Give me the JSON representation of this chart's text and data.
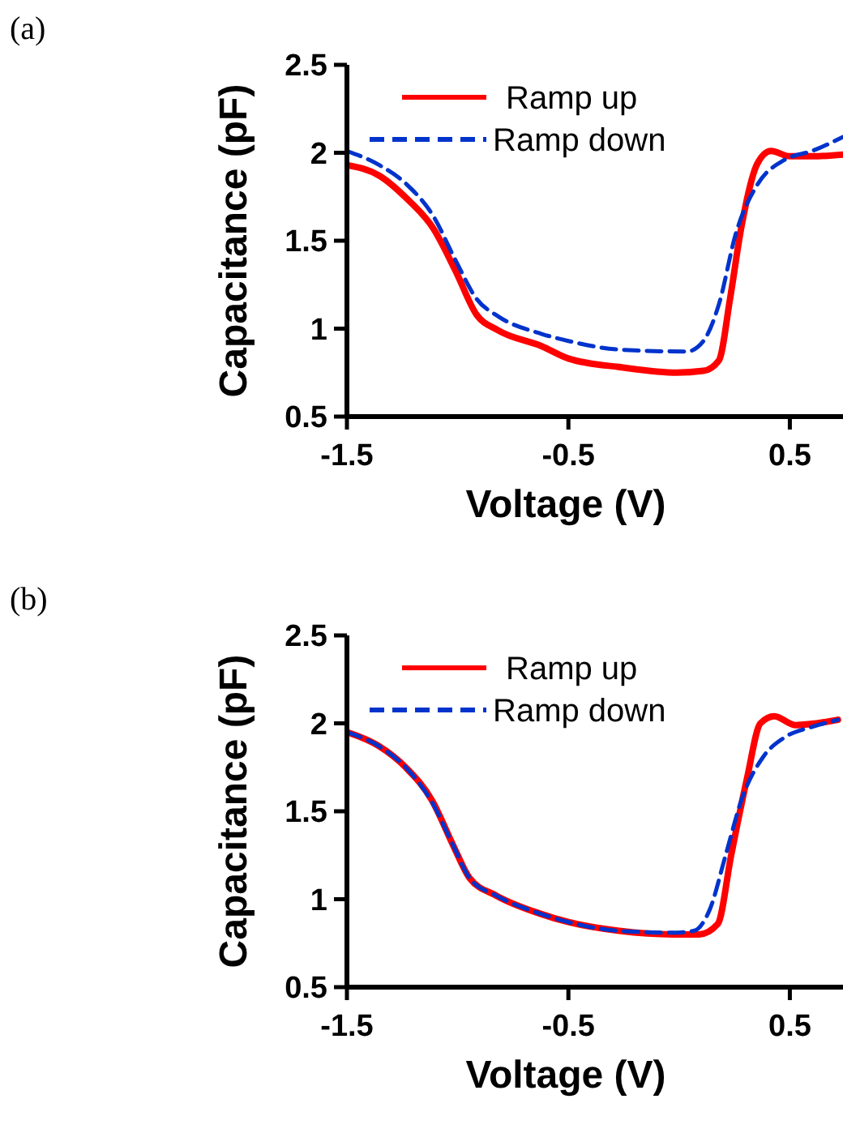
{
  "chart_data": [
    {
      "type": "line",
      "annotations": [
        "(a)"
      ],
      "xlabel": "Voltage (V)",
      "ylabel": "Capacitance (pF)",
      "xlim": [
        -1.5,
        0.74
      ],
      "ylim": [
        0.5,
        2.5
      ],
      "xticks": [
        -1.5,
        -0.5,
        0.5
      ],
      "yticks": [
        0.5,
        1,
        1.5,
        2,
        2.5
      ],
      "grid": false,
      "legend": "top",
      "marker": "none",
      "series": [
        {
          "name": "Ramp up",
          "color": "#ff0000",
          "line_style": "solid",
          "x": [
            -1.5,
            -1.354,
            -1.23,
            -1.11,
            -1.01,
            -0.915,
            -0.817,
            -0.62,
            -0.5,
            -0.26,
            -0.01,
            0.11,
            0.18,
            0.23,
            0.28,
            0.354,
            0.415,
            0.5,
            0.6,
            0.74
          ],
          "values": [
            1.93,
            1.87,
            1.74,
            1.57,
            1.33,
            1.08,
            0.99,
            0.9,
            0.83,
            0.78,
            0.75,
            0.76,
            0.82,
            1.17,
            1.57,
            1.94,
            2.01,
            1.98,
            1.98,
            1.99
          ]
        },
        {
          "name": "Ramp down",
          "color": "#0033cc",
          "line_style": "dashed",
          "x": [
            -1.5,
            -1.354,
            -1.23,
            -1.11,
            -1.01,
            -0.915,
            -0.817,
            -0.62,
            -0.5,
            -0.26,
            0.035,
            0.11,
            0.18,
            0.256,
            0.354,
            0.476,
            0.6,
            0.74
          ],
          "values": [
            2.01,
            1.93,
            1.82,
            1.64,
            1.39,
            1.17,
            1.07,
            0.97,
            0.93,
            0.88,
            0.87,
            0.93,
            1.14,
            1.54,
            1.82,
            1.96,
            2.01,
            2.09
          ]
        }
      ]
    },
    {
      "type": "line",
      "annotations": [
        "(b)"
      ],
      "xlabel": "Voltage (V)",
      "ylabel": "Capacitance (pF)",
      "xlim": [
        -1.5,
        0.74
      ],
      "ylim": [
        0.5,
        2.5
      ],
      "xticks": [
        -1.5,
        -0.5,
        0.5
      ],
      "yticks": [
        0.5,
        1,
        1.5,
        2,
        2.5
      ],
      "grid": false,
      "legend": "top",
      "marker": "none",
      "series": [
        {
          "name": "Ramp up",
          "color": "#ff0000",
          "line_style": "solid",
          "x": [
            -1.5,
            -1.355,
            -1.235,
            -1.115,
            -1.018,
            -0.946,
            -0.825,
            -0.633,
            -0.5,
            -0.27,
            -0.03,
            0.09,
            0.175,
            0.235,
            0.307,
            0.367,
            0.43,
            0.524,
            0.717
          ],
          "values": [
            1.95,
            1.87,
            1.75,
            1.56,
            1.3,
            1.12,
            1.02,
            0.92,
            0.87,
            0.82,
            0.8,
            0.8,
            0.86,
            1.25,
            1.69,
            2,
            2.04,
            1.99,
            2.02
          ]
        },
        {
          "name": "Ramp down",
          "color": "#0033cc",
          "line_style": "dashed",
          "x": [
            -1.5,
            -1.355,
            -1.235,
            -1.115,
            -1.018,
            -0.946,
            -0.825,
            -0.633,
            -0.5,
            -0.27,
            -0.03,
            0.066,
            0.138,
            0.21,
            0.283,
            0.38,
            0.476,
            0.6,
            0.717
          ],
          "values": [
            1.95,
            1.87,
            1.75,
            1.55,
            1.3,
            1.12,
            1.02,
            0.92,
            0.87,
            0.82,
            0.81,
            0.82,
            0.94,
            1.25,
            1.57,
            1.81,
            1.92,
            1.98,
            2.02
          ]
        }
      ]
    }
  ]
}
